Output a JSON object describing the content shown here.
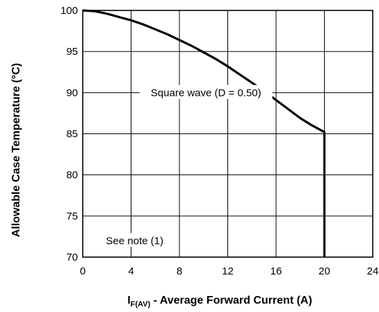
{
  "chart_data": {
    "type": "line",
    "xlabel_main": "I",
    "xlabel_sub": "F(AV)",
    "xlabel_rest": " - Average Forward Current (A)",
    "ylabel": "Allowable Case Temperature (°C)",
    "xlim": [
      0,
      24
    ],
    "ylim": [
      70,
      100
    ],
    "x_ticks": [
      "0",
      "4",
      "8",
      "12",
      "16",
      "20",
      "24"
    ],
    "y_ticks": [
      "70",
      "75",
      "80",
      "85",
      "90",
      "95",
      "100"
    ],
    "x_tick_values": [
      0,
      4,
      8,
      12,
      16,
      20,
      24
    ],
    "y_tick_values": [
      70,
      75,
      80,
      85,
      90,
      95,
      100
    ],
    "grid": true,
    "series": [
      {
        "points": [
          [
            0,
            100
          ],
          [
            1,
            99.9
          ],
          [
            2,
            99.6
          ],
          [
            3,
            99.2
          ],
          [
            4,
            98.8
          ],
          [
            5,
            98.3
          ],
          [
            6,
            97.7
          ],
          [
            7,
            97.1
          ],
          [
            8,
            96.4
          ],
          [
            9,
            95.7
          ],
          [
            10,
            94.9
          ],
          [
            11,
            94.1
          ],
          [
            12,
            93.2
          ],
          [
            13,
            92.2
          ],
          [
            14,
            91.2
          ],
          [
            15,
            90.2
          ],
          [
            16,
            89.1
          ],
          [
            17,
            88.0
          ],
          [
            18,
            86.9
          ],
          [
            19,
            86.0
          ],
          [
            20,
            85.2
          ],
          [
            20,
            70
          ]
        ]
      }
    ],
    "annotations": [
      {
        "text": "Square wave (D = 0.50)",
        "x": 10.2,
        "y": 90.0
      },
      {
        "text": "See note (1)",
        "x": 4.3,
        "y": 72.0
      }
    ],
    "colors": {
      "line": "#000000",
      "grid": "#000000",
      "background": "#ffffff"
    }
  }
}
